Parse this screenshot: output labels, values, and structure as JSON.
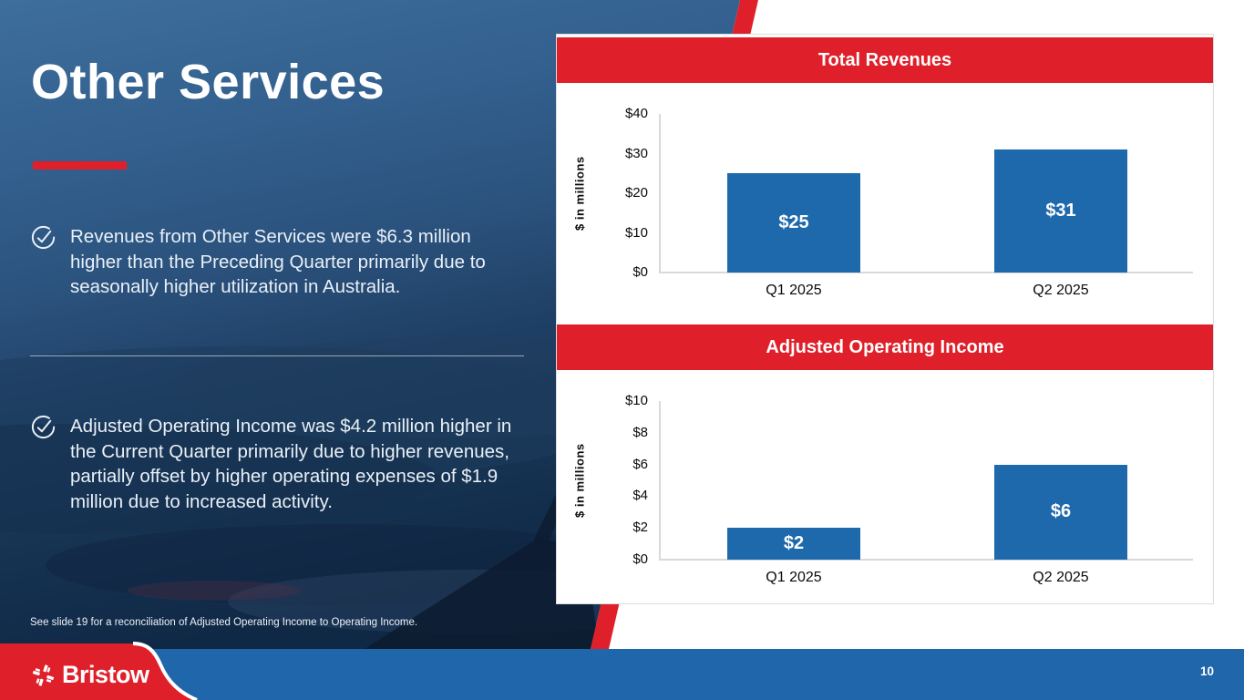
{
  "slide": {
    "title": "Other Services",
    "bullets": [
      "Revenues from Other Services were $6.3 million higher than the Preceding Quarter primarily due to seasonally higher utilization in Australia.",
      "Adjusted Operating Income was $4.2 million higher in the Current Quarter primarily due to higher revenues, partially offset by higher operating expenses of $1.9 million due to increased activity."
    ],
    "footnote": "See slide 19 for a reconciliation of Adjusted Operating Income to Operating Income.",
    "page_number": "10",
    "logo": {
      "text": "Bristow",
      "icon": "bristow-pinwheel-icon"
    }
  },
  "colors": {
    "brand_red": "#DF202A",
    "bar_blue": "#1E69AC",
    "footer_blue": "#1F66AA",
    "navy_top": "#3E6E9B",
    "navy_bottom": "#0F2846",
    "axis_gray": "#D9D9D9",
    "text_white": "#FFFFFF"
  },
  "chart_data": [
    {
      "type": "bar",
      "title": "Total Revenues",
      "ylabel": "$ in millions",
      "xlabel": "",
      "categories": [
        "Q1 2025",
        "Q2 2025"
      ],
      "values": [
        25,
        31
      ],
      "bar_labels": [
        "$25",
        "$31"
      ],
      "ylim": [
        0,
        40
      ],
      "yticks": [
        0,
        10,
        20,
        30,
        40
      ],
      "ytick_labels": [
        "$0",
        "$10",
        "$20",
        "$30",
        "$40"
      ],
      "grid": false,
      "legend": "none",
      "bar_color": "#1E69AC",
      "header_color": "#DF202A"
    },
    {
      "type": "bar",
      "title": "Adjusted Operating Income",
      "ylabel": "$ in millions",
      "xlabel": "",
      "categories": [
        "Q1 2025",
        "Q2 2025"
      ],
      "values": [
        2,
        6
      ],
      "bar_labels": [
        "$2",
        "$6"
      ],
      "ylim": [
        0,
        10
      ],
      "yticks": [
        0,
        2,
        4,
        6,
        8,
        10
      ],
      "ytick_labels": [
        "$0",
        "$2",
        "$4",
        "$6",
        "$8",
        "$10"
      ],
      "grid": false,
      "legend": "none",
      "bar_color": "#1E69AC",
      "header_color": "#DF202A"
    }
  ]
}
